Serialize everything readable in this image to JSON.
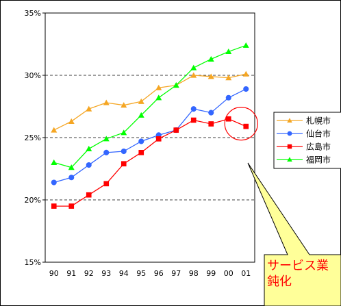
{
  "chart_data": {
    "type": "line",
    "categories": [
      "90",
      "91",
      "92",
      "93",
      "94",
      "95",
      "96",
      "97",
      "98",
      "99",
      "00",
      "01"
    ],
    "ylim": [
      15,
      35
    ],
    "yticks": [
      15,
      20,
      25,
      30,
      35
    ],
    "ytick_labels": [
      "15%",
      "20%",
      "25%",
      "30%",
      "35%"
    ],
    "grid": "dashed horizontal at 20%, 25%, 30%",
    "legend_position": "right",
    "series": [
      {
        "name": "札幌市",
        "color": "#f5a623",
        "marker": "triangle",
        "values": [
          25.6,
          26.3,
          27.3,
          27.8,
          27.6,
          27.9,
          29.0,
          29.2,
          30.0,
          29.9,
          29.8,
          30.1
        ]
      },
      {
        "name": "仙台市",
        "color": "#3366ff",
        "marker": "circle",
        "values": [
          21.4,
          21.8,
          22.8,
          23.8,
          23.9,
          24.7,
          25.2,
          25.6,
          27.3,
          27.0,
          28.2,
          28.9
        ]
      },
      {
        "name": "広島市",
        "color": "#ff0000",
        "marker": "square",
        "values": [
          19.5,
          19.5,
          20.4,
          21.3,
          22.9,
          23.8,
          24.9,
          25.6,
          26.4,
          26.1,
          26.5,
          25.9
        ]
      },
      {
        "name": "福岡市",
        "color": "#00ff00",
        "marker": "triangle",
        "values": [
          23.0,
          22.6,
          24.1,
          24.9,
          25.4,
          26.8,
          28.2,
          29.2,
          30.6,
          31.3,
          31.9,
          32.4
        ]
      }
    ],
    "annotation": {
      "lines": [
        "サービス業",
        "鈍化"
      ],
      "highlight_category": "01",
      "highlight_series": "広島市",
      "circle_color": "#ff0000",
      "callout_fill": "#ffff99",
      "text_color": "#ff0000"
    }
  }
}
